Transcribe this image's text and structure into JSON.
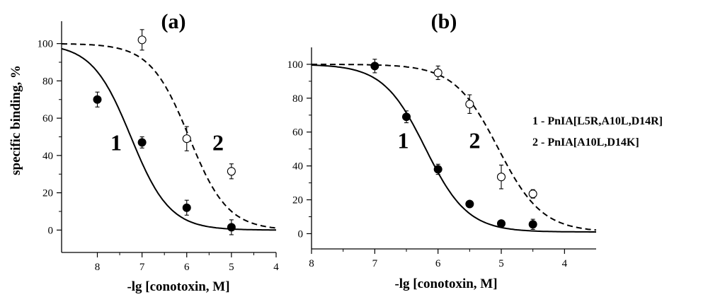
{
  "chart_data": [
    {
      "panel_label": "(a)",
      "type": "scatter",
      "xlabel": "-lg [conotoxin, M]",
      "ylabel": "specific binding, %",
      "xlim": [
        8.8,
        4.0
      ],
      "ylim": [
        -12,
        112
      ],
      "x_ticks": [
        8,
        7,
        6,
        5,
        4
      ],
      "y_ticks": [
        0,
        20,
        40,
        60,
        80,
        100
      ],
      "grid": false,
      "series": [
        {
          "name": "1",
          "marker": "filled-circle",
          "line_style": "solid",
          "points": [
            {
              "x": 8,
              "y": 70,
              "err": 4
            },
            {
              "x": 7,
              "y": 47,
              "err": 3
            },
            {
              "x": 6,
              "y": 12,
              "err": 4
            },
            {
              "x": 5,
              "y": 1.5,
              "err": 4
            }
          ],
          "fit": {
            "top": 100,
            "bottom": 0,
            "logIC50": 7.25,
            "hill": 1.0
          }
        },
        {
          "name": "2",
          "marker": "open-circle",
          "line_style": "dashed",
          "points": [
            {
              "x": 7,
              "y": 102,
              "err": 5.5
            },
            {
              "x": 6,
              "y": 49,
              "err": 6.5
            },
            {
              "x": 5,
              "y": 31.5,
              "err": 4
            }
          ],
          "fit": {
            "top": 100,
            "bottom": 0,
            "logIC50": 5.95,
            "hill": 1.0
          }
        }
      ],
      "curve_labels": [
        {
          "text": "1",
          "x": 7.58,
          "y": 47
        },
        {
          "text": "2",
          "x": 5.3,
          "y": 47
        }
      ]
    },
    {
      "panel_label": "(b)",
      "type": "scatter",
      "xlabel": "-lg [conotoxin, M]",
      "ylabel": "",
      "xlim": [
        8.0,
        3.5
      ],
      "ylim": [
        -9,
        110
      ],
      "x_ticks": [
        8,
        7,
        6,
        5,
        4
      ],
      "y_ticks": [
        0,
        20,
        40,
        60,
        80,
        100
      ],
      "grid": false,
      "series": [
        {
          "name": "1",
          "marker": "filled-circle",
          "line_style": "solid",
          "points": [
            {
              "x": 7,
              "y": 99,
              "err": 4
            },
            {
              "x": 6.5,
              "y": 69,
              "err": 3.5
            },
            {
              "x": 6,
              "y": 38,
              "err": 3
            },
            {
              "x": 5.5,
              "y": 17.5,
              "err": 1.5
            },
            {
              "x": 5,
              "y": 6,
              "err": 1.5
            },
            {
              "x": 4.5,
              "y": 5.5,
              "err": 3
            }
          ],
          "fit": {
            "top": 100,
            "bottom": 1,
            "logIC50": 6.2,
            "hill": 1.3
          }
        },
        {
          "name": "2",
          "marker": "open-circle",
          "line_style": "dashed",
          "points": [
            {
              "x": 6,
              "y": 95,
              "err": 4
            },
            {
              "x": 5.5,
              "y": 76.5,
              "err": 5.5
            },
            {
              "x": 5,
              "y": 33.5,
              "err": 7
            },
            {
              "x": 4.5,
              "y": 23.5,
              "err": 2.5
            }
          ],
          "fit": {
            "top": 100,
            "bottom": 1,
            "logIC50": 5.05,
            "hill": 1.25
          }
        }
      ],
      "curve_labels": [
        {
          "text": "1",
          "x": 6.55,
          "y": 55
        },
        {
          "text": "2",
          "x": 5.42,
          "y": 55
        }
      ],
      "legend": {
        "position": "right",
        "entries": [
          "1 - PnIA[L5R,A10L,D14R]",
          "2 - PnIA[A10L,D14K]"
        ]
      }
    }
  ]
}
